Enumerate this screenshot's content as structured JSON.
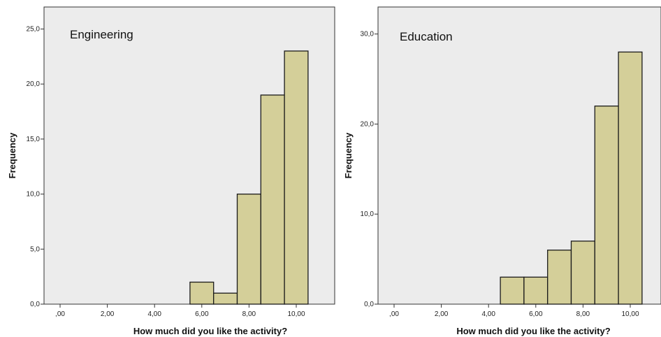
{
  "chart_data": [
    {
      "type": "bar",
      "title": "Engineering",
      "xlabel": "How much did you like the activity?",
      "ylabel": "Frequency",
      "x_ticks": [
        ",00",
        "2,00",
        "4,00",
        "6,00",
        "8,00",
        "10,00"
      ],
      "y_ticks": [
        "0,0",
        "5,0",
        "10,0",
        "15,0",
        "20,0",
        "25,0"
      ],
      "ylim": [
        0,
        27
      ],
      "bin_width": 1,
      "bins": [
        {
          "x": 6,
          "value": 2
        },
        {
          "x": 7,
          "value": 1
        },
        {
          "x": 8,
          "value": 10
        },
        {
          "x": 9,
          "value": 19
        },
        {
          "x": 10,
          "value": 23
        }
      ],
      "bar_color": "#d4cf99",
      "background_color": "#ececec",
      "grid": false
    },
    {
      "type": "bar",
      "title": "Education",
      "xlabel": "How much did you like the activity?",
      "ylabel": "Frequency",
      "x_ticks": [
        ",00",
        "2,00",
        "4,00",
        "6,00",
        "8,00",
        "10,00"
      ],
      "y_ticks": [
        "0,0",
        "10,0",
        "20,0",
        "30,0"
      ],
      "ylim": [
        0,
        33
      ],
      "bin_width": 1,
      "bins": [
        {
          "x": 5,
          "value": 3
        },
        {
          "x": 6,
          "value": 3
        },
        {
          "x": 7,
          "value": 6
        },
        {
          "x": 8,
          "value": 7
        },
        {
          "x": 9,
          "value": 22
        },
        {
          "x": 10,
          "value": 28
        }
      ],
      "bar_color": "#d4cf99",
      "background_color": "#ececec",
      "grid": false
    }
  ]
}
